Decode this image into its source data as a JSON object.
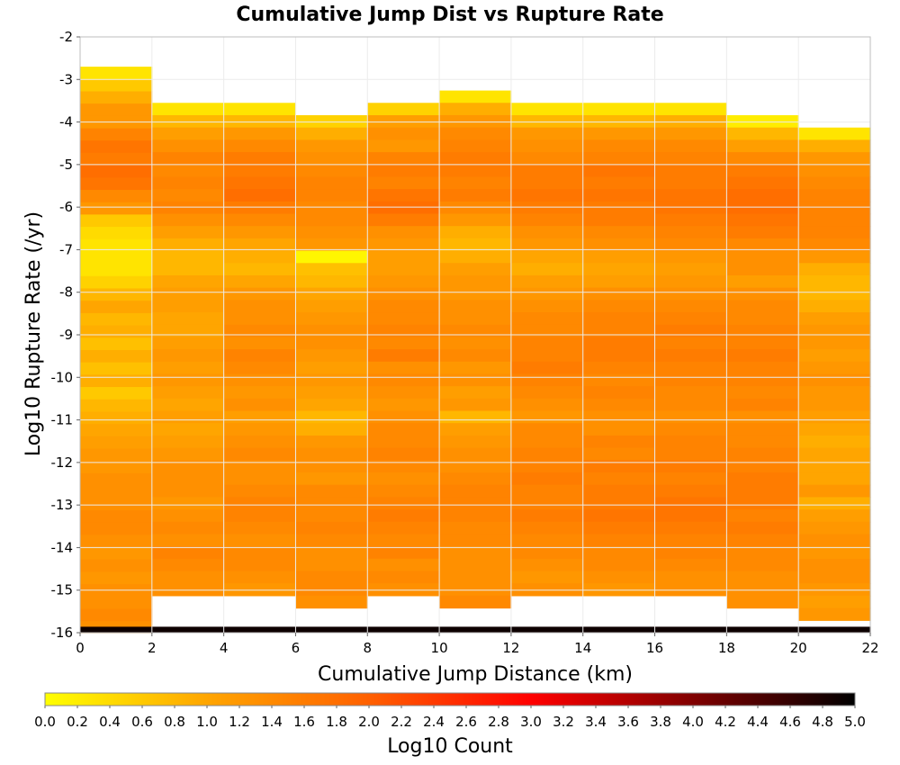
{
  "chart_data": {
    "type": "heatmap",
    "title": "Cumulative Jump Dist vs Rupture Rate",
    "xlabel": "Cumulative Jump Distance (km)",
    "ylabel": "Log10 Rupture Rate (/yr)",
    "xlim": [
      0,
      22
    ],
    "ylim": [
      -16,
      -2
    ],
    "x_ticks": [
      "0",
      "2",
      "4",
      "6",
      "8",
      "10",
      "12",
      "14",
      "16",
      "18",
      "20",
      "22"
    ],
    "y_ticks": [
      "-2",
      "-3",
      "-4",
      "-5",
      "-6",
      "-7",
      "-8",
      "-9",
      "-10",
      "-11",
      "-12",
      "-13",
      "-14",
      "-15",
      "-16"
    ],
    "grid": true,
    "x_bin_width": 2,
    "y_bin_height": 0.2895,
    "colorbar": {
      "label": "Log10 Count",
      "range": [
        0.0,
        5.0
      ],
      "ticks": [
        "0.0",
        "0.2",
        "0.4",
        "0.6",
        "0.8",
        "1.0",
        "1.2",
        "1.4",
        "1.6",
        "1.8",
        "2.0",
        "2.2",
        "2.4",
        "2.6",
        "2.8",
        "3.0",
        "3.2",
        "3.4",
        "3.6",
        "3.8",
        "4.0",
        "4.2",
        "4.4",
        "4.6",
        "4.8",
        "5.0"
      ],
      "colors": [
        "#ffff00",
        "#ffa500",
        "#ff6000",
        "#ff0000",
        "#800000",
        "#000000"
      ],
      "placement": "bottom"
    },
    "column_top_rate": [
      -2.7,
      -3.55,
      -3.55,
      -3.84,
      -3.55,
      -3.26,
      -3.55,
      -3.55,
      -3.55,
      -3.84,
      -4.13
    ],
    "cells": [
      [
        0.3,
        0.6,
        0.9,
        1.2,
        1.2,
        1.5,
        1.7,
        1.6,
        1.8,
        1.7,
        1.4,
        1.2,
        0.6,
        0.4,
        0.3,
        0.3,
        0.3,
        0.5,
        0.8,
        1.0,
        0.8,
        0.9,
        0.7,
        0.9,
        0.7,
        0.9,
        0.6,
        0.8,
        0.9,
        1.0,
        1.1,
        1.2,
        1.2,
        1.3,
        1.3,
        1.3,
        1.4,
        1.4,
        1.3,
        1.2,
        1.3,
        1.2,
        1.3,
        1.3,
        1.4,
        1.3
      ],
      [
        0.3,
        0.8,
        1.1,
        1.3,
        1.5,
        1.4,
        1.5,
        1.4,
        1.5,
        1.3,
        1.1,
        0.9,
        0.8,
        0.8,
        1.0,
        1.1,
        1.1,
        1.0,
        1.0,
        1.1,
        1.2,
        1.1,
        1.2,
        1.1,
        1.0,
        1.1,
        1.0,
        1.1,
        1.2,
        1.3,
        1.3,
        1.3,
        1.2,
        1.3,
        1.4,
        1.3,
        1.5,
        1.4,
        1.3,
        1.3
      ],
      [
        0.3,
        0.8,
        1.2,
        1.4,
        1.6,
        1.6,
        1.7,
        1.8,
        1.6,
        1.4,
        1.2,
        1.0,
        0.9,
        0.8,
        1.0,
        1.2,
        1.3,
        1.3,
        1.4,
        1.3,
        1.5,
        1.4,
        1.3,
        1.2,
        1.3,
        1.1,
        1.2,
        1.3,
        1.4,
        1.3,
        1.3,
        1.4,
        1.5,
        1.5,
        1.4,
        1.3,
        1.4,
        1.4,
        1.3,
        1.2
      ],
      [
        0.5,
        0.9,
        1.2,
        1.3,
        1.4,
        1.5,
        1.5,
        1.4,
        1.4,
        1.3,
        1.2,
        0.1,
        0.7,
        0.8,
        1.0,
        1.1,
        1.2,
        1.3,
        1.3,
        1.2,
        1.1,
        1.2,
        1.1,
        1.0,
        0.8,
        0.9,
        1.2,
        1.3,
        1.3,
        1.2,
        1.4,
        1.4,
        1.4,
        1.5,
        1.4,
        1.3,
        1.3,
        1.4,
        1.4,
        1.3
      ],
      [
        0.5,
        1.1,
        1.3,
        1.2,
        1.5,
        1.6,
        1.5,
        1.7,
        1.8,
        1.6,
        1.3,
        1.2,
        1.1,
        1.1,
        1.2,
        1.3,
        1.4,
        1.4,
        1.5,
        1.4,
        1.6,
        1.3,
        1.4,
        1.3,
        1.2,
        1.3,
        1.4,
        1.4,
        1.5,
        1.4,
        1.3,
        1.4,
        1.5,
        1.6,
        1.5,
        1.4,
        1.5,
        1.3,
        1.4,
        1.3
      ],
      [
        0.3,
        0.9,
        1.2,
        1.4,
        1.5,
        1.6,
        1.6,
        1.5,
        1.6,
        1.4,
        1.2,
        0.9,
        0.8,
        0.9,
        1.1,
        1.2,
        1.2,
        1.3,
        1.3,
        1.4,
        1.3,
        1.4,
        1.2,
        1.3,
        1.1,
        1.2,
        0.8,
        1.1,
        1.2,
        1.3,
        1.3,
        1.4,
        1.5,
        1.5,
        1.5,
        1.4,
        1.4,
        1.3,
        1.3,
        1.3,
        1.3,
        1.4
      ],
      [
        0.3,
        0.8,
        1.2,
        1.3,
        1.4,
        1.6,
        1.6,
        1.7,
        1.6,
        1.5,
        1.3,
        1.2,
        1.0,
        0.9,
        1.1,
        1.2,
        1.3,
        1.4,
        1.4,
        1.5,
        1.5,
        1.6,
        1.5,
        1.4,
        1.3,
        1.2,
        1.4,
        1.4,
        1.5,
        1.5,
        1.6,
        1.5,
        1.5,
        1.6,
        1.5,
        1.4,
        1.4,
        1.3,
        1.2,
        1.3
      ],
      [
        0.3,
        0.8,
        1.2,
        1.4,
        1.5,
        1.7,
        1.6,
        1.7,
        1.6,
        1.6,
        1.4,
        1.3,
        1.1,
        1.0,
        1.1,
        1.3,
        1.4,
        1.5,
        1.5,
        1.6,
        1.6,
        1.5,
        1.4,
        1.5,
        1.4,
        1.3,
        1.3,
        1.5,
        1.4,
        1.6,
        1.5,
        1.6,
        1.6,
        1.7,
        1.6,
        1.5,
        1.4,
        1.4,
        1.3,
        1.2
      ],
      [
        0.3,
        0.9,
        1.2,
        1.4,
        1.5,
        1.6,
        1.6,
        1.7,
        1.7,
        1.6,
        1.5,
        1.4,
        1.2,
        1.1,
        1.2,
        1.3,
        1.4,
        1.5,
        1.6,
        1.5,
        1.6,
        1.5,
        1.5,
        1.4,
        1.4,
        1.3,
        1.4,
        1.5,
        1.5,
        1.6,
        1.5,
        1.6,
        1.7,
        1.7,
        1.6,
        1.5,
        1.5,
        1.4,
        1.3,
        1.3
      ],
      [
        0.2,
        0.8,
        1.1,
        1.4,
        1.6,
        1.7,
        1.8,
        1.8,
        1.7,
        1.6,
        1.4,
        1.3,
        1.3,
        1.1,
        1.3,
        1.4,
        1.4,
        1.5,
        1.5,
        1.6,
        1.5,
        1.5,
        1.4,
        1.5,
        1.3,
        1.4,
        1.4,
        1.5,
        1.5,
        1.6,
        1.6,
        1.6,
        1.5,
        1.6,
        1.5,
        1.4,
        1.4,
        1.3,
        1.3,
        1.3
      ],
      [
        0.3,
        0.9,
        1.2,
        1.3,
        1.4,
        1.5,
        1.5,
        1.5,
        1.5,
        1.4,
        1.2,
        0.9,
        0.8,
        0.8,
        0.9,
        1.1,
        1.2,
        1.2,
        1.1,
        1.2,
        1.3,
        1.2,
        1.2,
        1.1,
        1.0,
        0.9,
        1.0,
        1.0,
        1.0,
        1.2,
        0.9,
        1.1,
        1.2,
        1.3,
        1.2,
        1.3,
        1.3,
        1.2,
        1.1,
        1.2
      ]
    ]
  }
}
